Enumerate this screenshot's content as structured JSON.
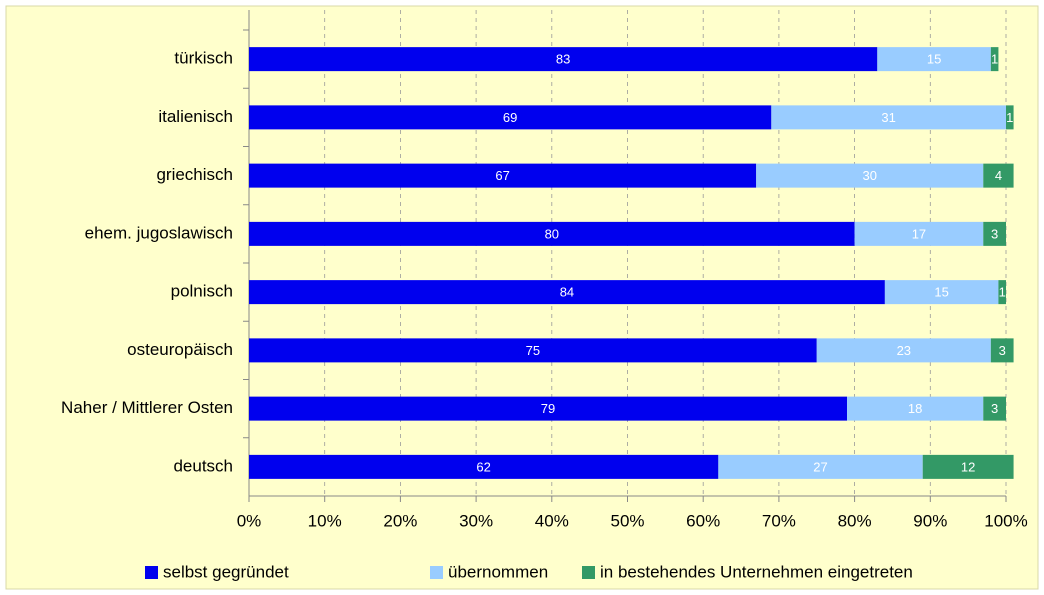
{
  "chart_data": {
    "type": "stacked_barh",
    "categories": [
      "türkisch",
      "italienisch",
      "griechisch",
      "ehem. jugoslawisch",
      "polnisch",
      "osteuropäisch",
      "Naher / Mittlerer Osten",
      "deutsch"
    ],
    "series": [
      {
        "name": "selbst gegründet",
        "color": "#0000ee",
        "values": [
          83,
          69,
          67,
          80,
          84,
          75,
          79,
          62
        ]
      },
      {
        "name": "übernommen",
        "color": "#99ccff",
        "values": [
          15,
          31,
          30,
          17,
          15,
          23,
          18,
          27
        ]
      },
      {
        "name": "in bestehendes Unternehmen eingetreten",
        "color": "#339966",
        "values": [
          1,
          1,
          4,
          3,
          1,
          3,
          3,
          12
        ]
      }
    ],
    "xlim": [
      0,
      100
    ],
    "xticks": [
      {
        "value": 0,
        "label": "0%"
      },
      {
        "value": 10,
        "label": "10%"
      },
      {
        "value": 20,
        "label": "20%"
      },
      {
        "value": 30,
        "label": "30%"
      },
      {
        "value": 40,
        "label": "40%"
      },
      {
        "value": 50,
        "label": "50%"
      },
      {
        "value": 60,
        "label": "60%"
      },
      {
        "value": 70,
        "label": "70%"
      },
      {
        "value": 80,
        "label": "80%"
      },
      {
        "value": 90,
        "label": "90%"
      },
      {
        "value": 100,
        "label": "100%"
      }
    ],
    "grid": true,
    "legend": "bottom"
  }
}
